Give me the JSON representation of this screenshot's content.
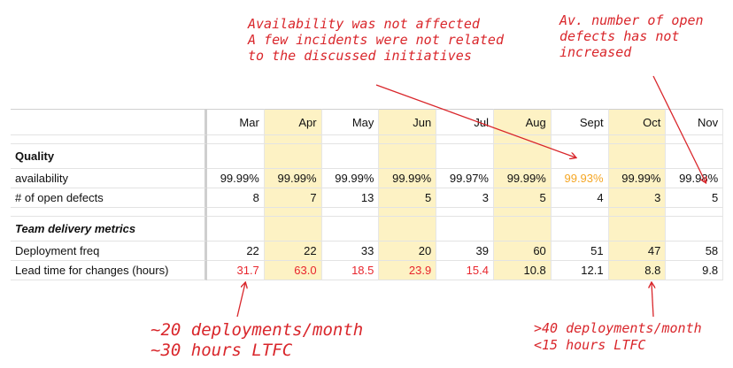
{
  "annotations": {
    "top_mid": [
      "Availability was not affected",
      "A few incidents were not related",
      "to the discussed initiatives"
    ],
    "top_right": [
      "Av. number of open",
      "defects has not",
      "increased"
    ],
    "bottom_left": [
      "~20 deployments/month",
      "~30 hours LTFC"
    ],
    "bottom_right": [
      ">40 deployments/month",
      "<15 hours LTFC"
    ]
  },
  "table": {
    "months": [
      "Mar",
      "Apr",
      "May",
      "Jun",
      "Jul",
      "Aug",
      "Sept",
      "Oct",
      "Nov"
    ],
    "highlighted_months": [
      "Apr",
      "Jun",
      "Aug",
      "Oct"
    ],
    "sections": [
      {
        "title": "Quality",
        "rows": [
          {
            "label": "availability",
            "values": [
              "99.99%",
              "99.99%",
              "99.99%",
              "99.99%",
              "99.97%",
              "99.99%",
              "99.93%",
              "99.99%",
              "99.98%"
            ]
          },
          {
            "label": "# of open defects",
            "values": [
              "8",
              "7",
              "13",
              "5",
              "3",
              "5",
              "4",
              "3",
              "5"
            ]
          }
        ]
      },
      {
        "title": "Team delivery metrics",
        "rows": [
          {
            "label": "Deployment freq",
            "values": [
              "22",
              "22",
              "33",
              "20",
              "39",
              "60",
              "51",
              "47",
              "58"
            ]
          },
          {
            "label": "Lead time for changes (hours)",
            "values": [
              "31.7",
              "63.0",
              "18.5",
              "23.9",
              "15.4",
              "10.8",
              "12.1",
              "8.8",
              "9.8"
            ]
          }
        ]
      }
    ]
  },
  "colors": {
    "annotation": "#d9262b",
    "value_red": "#e8262d",
    "value_orange": "#f5a623",
    "highlight": "#fdf2c4"
  }
}
